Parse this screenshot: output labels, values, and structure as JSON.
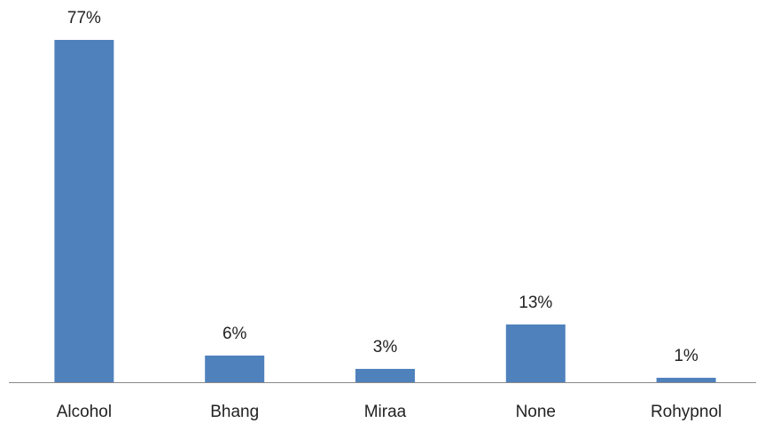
{
  "chart_data": {
    "type": "bar",
    "categories": [
      "Alcohol",
      "Bhang",
      "Miraa",
      "None",
      "Rohypnol"
    ],
    "values": [
      77,
      6,
      3,
      13,
      1
    ],
    "value_labels": [
      "77%",
      "6%",
      "3%",
      "13%",
      "1%"
    ],
    "color": "#4f81bd"
  }
}
